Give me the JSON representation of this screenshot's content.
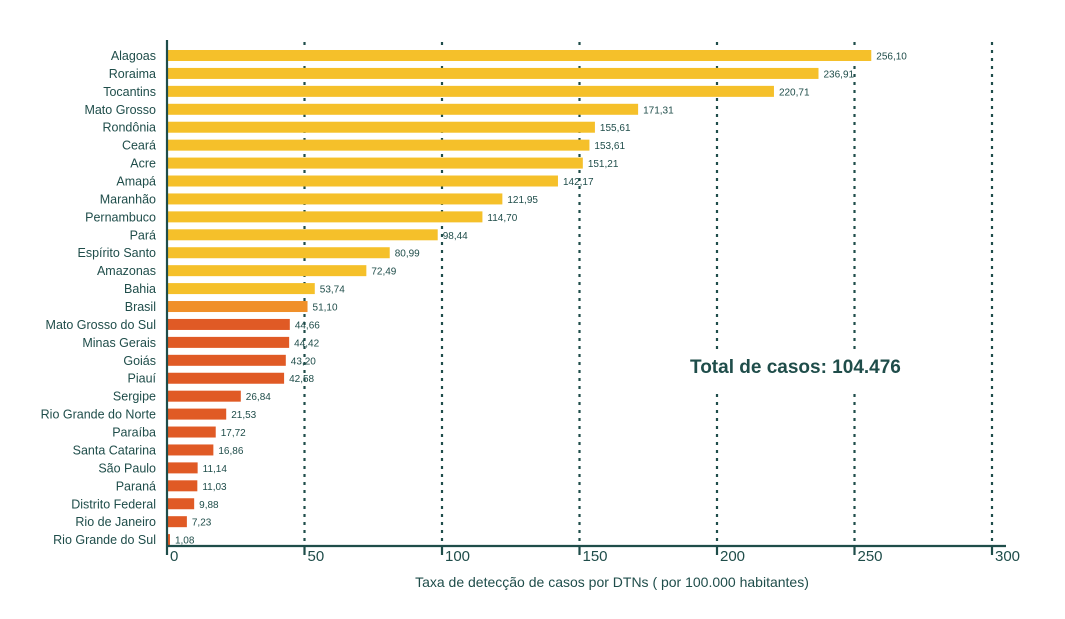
{
  "chart_data": {
    "type": "bar",
    "orientation": "horizontal",
    "categories": [
      "Alagoas",
      "Roraima",
      "Tocantins",
      "Mato Grosso",
      "Rondônia",
      "Ceará",
      "Acre",
      "Amapá",
      "Maranhão",
      "Pernambuco",
      "Pará",
      "Espírito Santo",
      "Amazonas",
      "Bahia",
      "Brasil",
      "Mato Grosso do Sul",
      "Minas Gerais",
      "Goiás",
      "Piauí",
      "Sergipe",
      "Rio Grande do Norte",
      "Paraíba",
      "Santa Catarina",
      "São Paulo",
      "Paraná",
      "Distrito Federal",
      "Rio de Janeiro",
      "Rio Grande do Sul"
    ],
    "values": [
      256.1,
      236.91,
      220.71,
      171.31,
      155.61,
      153.61,
      151.21,
      142.17,
      121.95,
      114.7,
      98.44,
      80.99,
      72.49,
      53.74,
      51.1,
      44.66,
      44.42,
      43.2,
      42.58,
      26.84,
      21.53,
      17.72,
      16.86,
      11.14,
      11.03,
      9.88,
      7.23,
      1.08
    ],
    "value_labels": [
      "256,10",
      "236,91",
      "220,71",
      "171,31",
      "155,61",
      "153,61",
      "151,21",
      "142,17",
      "121,95",
      "114,70",
      "98,44",
      "80,99",
      "72,49",
      "53,74",
      "51,10",
      "44,66",
      "44,42",
      "43,20",
      "42,58",
      "26,84",
      "21,53",
      "17,72",
      "16,86",
      "11,14",
      "11,03",
      "9,88",
      "7,23",
      "1,08"
    ],
    "xlabel": "Taxa de detecção de casos por DTNs ( por 100.000 habitantes)",
    "ylabel": "",
    "xlim": [
      0,
      300
    ],
    "xticks": [
      0,
      50,
      100,
      150,
      200,
      250,
      300
    ],
    "xtick_labels": [
      "0",
      "50",
      "100",
      "150",
      "200",
      "250",
      "300"
    ],
    "grid": "vertical dotted",
    "annotation": "Total de casos: 104.476",
    "colors": {
      "above_brasil": "#f5c02a",
      "brasil": "#f0902a",
      "below_brasil": "#e05a25",
      "axis": "#1f4d4a",
      "text": "#1f4d4a",
      "grid": "#1f4d4a"
    }
  }
}
